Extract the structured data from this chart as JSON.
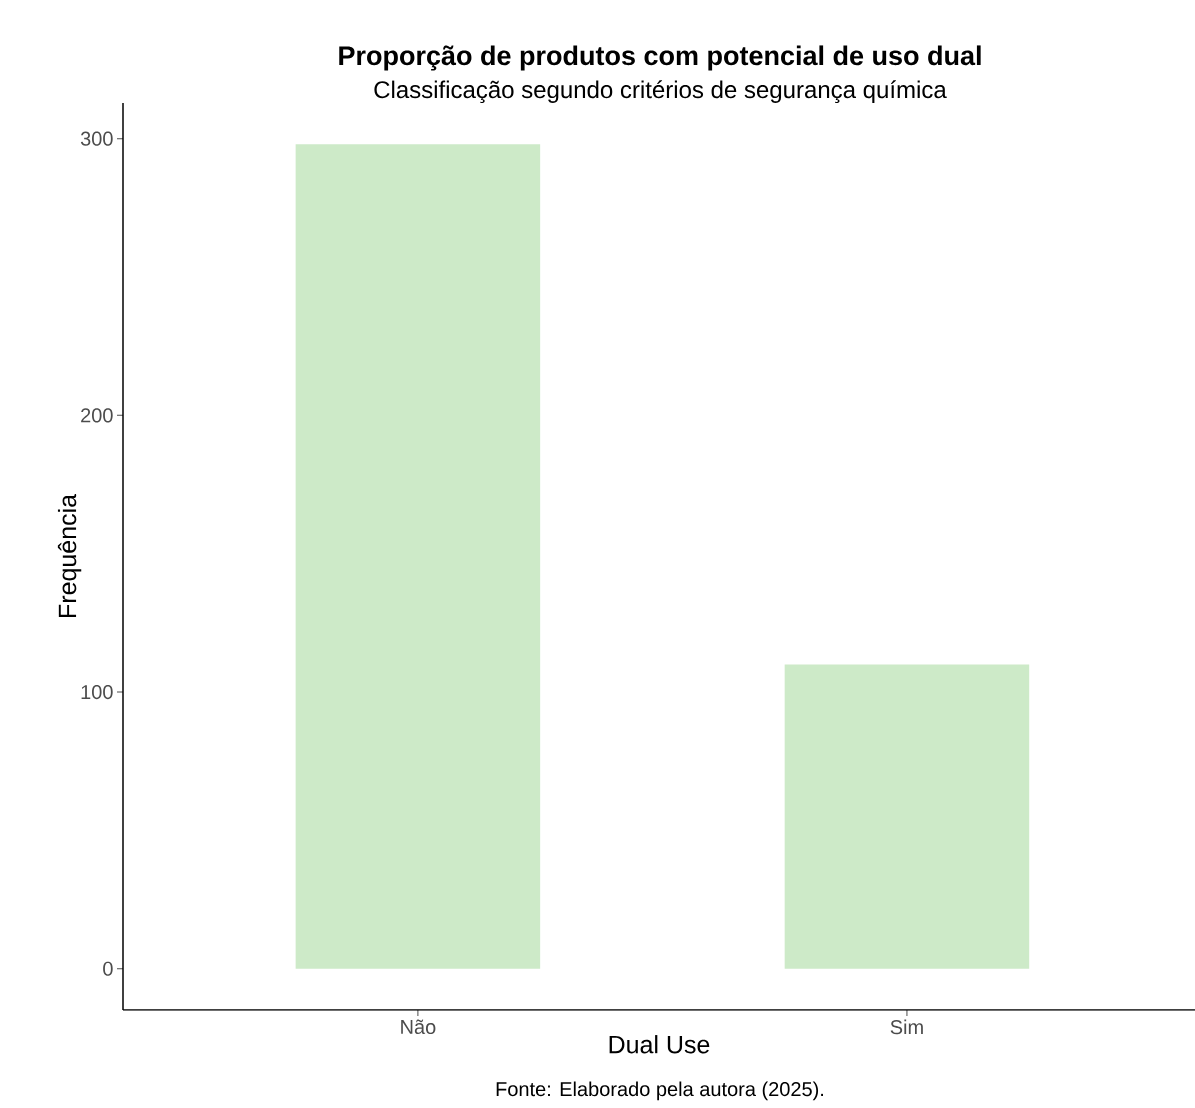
{
  "chart_data": {
    "type": "bar",
    "title": "Proporção de produtos com potencial de uso dual",
    "subtitle": "Classificação segundo critérios de segurança química",
    "xlabel": "Dual Use",
    "ylabel": "Frequência",
    "categories": [
      "Não",
      "Sim"
    ],
    "values": [
      298,
      110
    ],
    "color": "#cdeac8",
    "ylim": [
      -14.9,
      312.9
    ],
    "yticks": [
      0,
      100,
      200,
      300
    ],
    "annotations": [
      "Fonte: Elaborado pela autora (2025)."
    ]
  }
}
